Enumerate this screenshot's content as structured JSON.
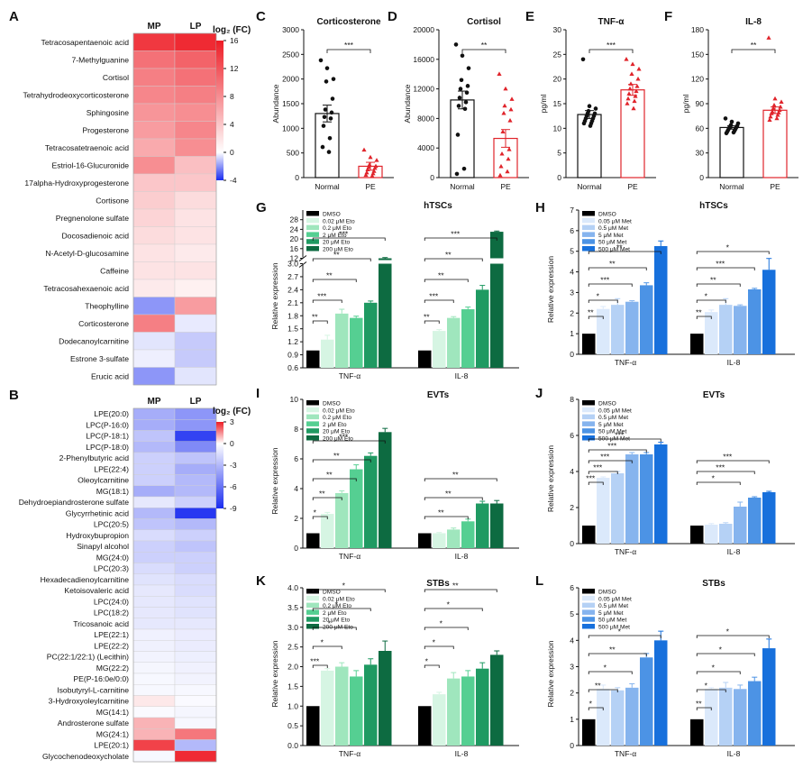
{
  "panel_labels": [
    "A",
    "B",
    "C",
    "D",
    "E",
    "F",
    "G",
    "H",
    "I",
    "J",
    "K",
    "L"
  ],
  "colors": {
    "black": "#000000",
    "eto": [
      "#000000",
      "#d6f5e3",
      "#9fe6bd",
      "#55cf92",
      "#1f9a62",
      "#0d6b41"
    ],
    "met": [
      "#000000",
      "#dbe9fb",
      "#b5d1f5",
      "#86b4ee",
      "#4c93e5",
      "#1770dc"
    ],
    "heat_pos": "#ee1c25",
    "heat_neg": "#1a2cf0",
    "normal": "#111111",
    "pe": "#e0242b"
  },
  "chart_data": [
    {
      "id": "A",
      "type": "heatmap",
      "columns": [
        "MP",
        "LP"
      ],
      "legend_title": "log₂ (FC)",
      "legend_ticks": [
        16,
        12,
        8,
        4,
        0,
        -4
      ],
      "range": [
        -4,
        16
      ],
      "rows": [
        "Tetracosapentaenoic acid",
        "7-Methylguanine",
        "Cortisol",
        "Tetrahydrodeoxycorticosterone",
        "Sphingosine",
        "Progesterone",
        "Tetracosatetraenoic acid",
        "Estriol-16-Glucuronide",
        "17alpha-Hydroxyprogesterone",
        "Cortisone",
        "Pregnenolone sulfate",
        "Docosadienoic acid",
        "N-Acetyl-D-glucosamine",
        "Caffeine",
        "Tetracosahexaenoic acid",
        "Theophylline",
        "Corticosterone",
        "Dodecanoylcarnitine",
        "Estrone 3-sulfate",
        "Erucic acid"
      ],
      "values": [
        [
          14,
          15
        ],
        [
          10,
          11
        ],
        [
          9,
          10
        ],
        [
          8.5,
          9
        ],
        [
          7.5,
          8
        ],
        [
          7,
          8.5
        ],
        [
          6,
          8
        ],
        [
          8,
          4.5
        ],
        [
          4,
          4
        ],
        [
          3.5,
          2.5
        ],
        [
          3,
          2
        ],
        [
          2.5,
          2
        ],
        [
          2,
          1.5
        ],
        [
          2,
          2
        ],
        [
          1.5,
          1
        ],
        [
          -2,
          7
        ],
        [
          9,
          -0.4
        ],
        [
          -0.5,
          -1
        ],
        [
          -0.3,
          -1
        ],
        [
          -2,
          -0.5
        ]
      ]
    },
    {
      "id": "B",
      "type": "heatmap",
      "columns": [
        "MP",
        "LP"
      ],
      "legend_title": "log₂ (FC)",
      "legend_ticks": [
        3,
        0,
        -3,
        -6,
        -9
      ],
      "range": [
        -9,
        3
      ],
      "rows": [
        "LPE(20:0)",
        "LPC(P-16:0)",
        "LPC(P-18:1)",
        "LPC(P-18:0)",
        "2-Phenylbutyric acid",
        "LPE(22:4)",
        "Oleoylcarnitine",
        "MG(18:1)",
        "Dehydroepiandrosterone sulfate",
        "Glycyrrhetinic acid",
        "LPC(20:5)",
        "Hydroxybupropion",
        "Sinapyl alcohol",
        "MG(24:0)",
        "LPC(20:3)",
        "Hexadecadienoylcarnitine",
        "Ketoisovaleric acid",
        "LPC(24:0)",
        "LPC(18:2)",
        "Tricosanoic acid",
        "LPE(22:1)",
        "LPE(22:2)",
        "PC(22:1/22:1) (Lecithin)",
        "MG(22:2)",
        "PE(P-16:0e/0:0)",
        "Isobutyryl-L-carnitine",
        "3-Hydroxyoleylcarnitine",
        "MG(14:1)",
        "Androsterone sulfate",
        "MG(24:1)",
        "LPE(20:1)",
        "Glycochenodeoxycholate"
      ],
      "values": [
        [
          -3.5,
          -4.5
        ],
        [
          -3.5,
          -4.5
        ],
        [
          -2.5,
          -8
        ],
        [
          -3,
          -5
        ],
        [
          -2,
          -2.5
        ],
        [
          -2,
          -3.5
        ],
        [
          -2,
          -3
        ],
        [
          -3.5,
          -3
        ],
        [
          -1,
          -2
        ],
        [
          -3,
          -8.5
        ],
        [
          -2.5,
          -3
        ],
        [
          -1.5,
          -2
        ],
        [
          -2,
          -2.5
        ],
        [
          -2,
          -2
        ],
        [
          -1.5,
          -2
        ],
        [
          -1.2,
          -1.5
        ],
        [
          -1,
          -1.5
        ],
        [
          -1,
          -1.2
        ],
        [
          -1,
          -1.2
        ],
        [
          -1,
          -1
        ],
        [
          -0.6,
          -0.8
        ],
        [
          -0.6,
          -0.8
        ],
        [
          -0.5,
          -0.7
        ],
        [
          -0.4,
          -0.6
        ],
        [
          -0.3,
          -0.5
        ],
        [
          -0.3,
          -0.3
        ],
        [
          0.3,
          -0.2
        ],
        [
          -0.2,
          -0.4
        ],
        [
          1,
          -0.3
        ],
        [
          1,
          1.8
        ],
        [
          2.5,
          -3
        ],
        [
          -0.3,
          2.8
        ]
      ]
    },
    {
      "id": "C",
      "type": "bar",
      "title": "Corticosterone",
      "ylabel": "Abundance",
      "categories": [
        "Normal",
        "PE"
      ],
      "ylim": [
        0,
        3000
      ],
      "yticks": [
        0,
        500,
        1000,
        1500,
        2000,
        2500,
        3000
      ],
      "means": [
        1300,
        230
      ],
      "sem": [
        170,
        80
      ],
      "significance": "***",
      "points": [
        [
          2380,
          2220,
          2000,
          1950,
          1600,
          1380,
          1320,
          1230,
          1200,
          1050,
          800,
          620,
          520
        ],
        [
          560,
          410,
          350,
          260,
          230,
          210,
          190,
          160,
          130,
          100,
          80,
          50,
          30
        ]
      ]
    },
    {
      "id": "D",
      "type": "bar",
      "title": "Cortisol",
      "ylabel": "Abundance",
      "categories": [
        "Normal",
        "PE"
      ],
      "ylim": [
        0,
        20000
      ],
      "yticks": [
        0,
        4000,
        8000,
        12000,
        16000,
        20000
      ],
      "means": [
        10500,
        5300
      ],
      "sem": [
        1200,
        1200
      ],
      "significance": "**",
      "points": [
        [
          18000,
          16500,
          14800,
          13200,
          12400,
          12000,
          11500,
          10800,
          10200,
          9700,
          9300,
          5800,
          1200,
          500
        ],
        [
          14000,
          12000,
          10600,
          9700,
          9200,
          8700,
          7700,
          6200,
          3800,
          3200,
          2500,
          1500,
          800,
          300
        ]
      ]
    },
    {
      "id": "E",
      "type": "bar",
      "title": "TNF-α",
      "ylabel": "pg/ml",
      "categories": [
        "Normal",
        "PE"
      ],
      "ylim": [
        0,
        30
      ],
      "yticks": [
        0,
        5,
        10,
        15,
        20,
        25,
        30
      ],
      "means": [
        12.8,
        17.8
      ],
      "sem": [
        0.8,
        1.1
      ],
      "significance": "***",
      "points": [
        [
          24,
          14.5,
          14,
          13.5,
          13,
          13,
          12.5,
          12.5,
          12,
          12,
          11.5,
          11.5,
          11,
          11,
          10.5
        ],
        [
          24,
          23,
          22,
          21,
          20,
          19,
          18.5,
          18,
          17.5,
          17,
          16.5,
          16,
          15.5,
          15,
          14
        ]
      ]
    },
    {
      "id": "F",
      "type": "bar",
      "title": "IL-8",
      "ylabel": "pg/ml",
      "categories": [
        "Normal",
        "PE"
      ],
      "ylim": [
        0,
        180
      ],
      "yticks": [
        0,
        30,
        60,
        90,
        120,
        150,
        180
      ],
      "means": [
        61,
        82
      ],
      "sem": [
        2,
        4
      ],
      "significance": "**",
      "points": [
        [
          72,
          68,
          66,
          64,
          63,
          62,
          61,
          60,
          59,
          58,
          57,
          56,
          55,
          54
        ],
        [
          170,
          96,
          92,
          88,
          86,
          84,
          82,
          80,
          79,
          78,
          76,
          74,
          72,
          70
        ]
      ]
    },
    {
      "id": "G",
      "type": "bar",
      "title": "hTSCs",
      "ylabel": "Relative expression",
      "categories": [
        "TNF-α",
        "IL-8"
      ],
      "legend": [
        "DMSO",
        "0.02 μM Eto",
        "0.2 μM Eto",
        "2 μM Eto",
        "20 μM Eto",
        "200 μM Eto"
      ],
      "broken_axis": {
        "lower": [
          0.6,
          3.0
        ],
        "upper": [
          12,
          32
        ]
      },
      "yticks_lower": [
        0.6,
        0.9,
        1.2,
        1.5,
        1.8,
        2.1,
        2.4,
        2.7,
        3.0
      ],
      "yticks_upper": [
        12,
        16,
        20,
        24,
        28
      ],
      "series_values": [
        [
          1.0,
          1.25,
          1.85,
          1.75,
          2.1,
          12
        ],
        [
          1.0,
          1.45,
          1.75,
          1.95,
          2.4,
          23
        ]
      ],
      "sem": [
        [
          0.02,
          0.1,
          0.1,
          0.04,
          0.04,
          0.3
        ],
        [
          0.02,
          0.03,
          0.03,
          0.05,
          0.1,
          0.3
        ]
      ],
      "brackets": [
        [
          "**",
          "***",
          "**",
          "**",
          "***"
        ],
        [
          "**",
          "***",
          "**",
          "**",
          "***"
        ]
      ],
      "bracket_targets": [
        [
          1,
          2,
          3,
          4,
          5
        ],
        [
          1,
          2,
          3,
          4,
          5
        ]
      ]
    },
    {
      "id": "H",
      "type": "bar",
      "title": "hTSCs",
      "ylabel": "Relative expression",
      "categories": [
        "TNF-α",
        "IL-8"
      ],
      "legend": [
        "DMSO",
        "0.05 μM Met",
        "0.5 μM Met",
        "5 μM Met",
        "50 μM Met",
        "500 μM Met"
      ],
      "ylim": [
        0,
        7
      ],
      "yticks": [
        0,
        1,
        2,
        3,
        4,
        5,
        6,
        7
      ],
      "series_values": [
        [
          1.0,
          2.2,
          2.4,
          2.55,
          3.35,
          5.25
        ],
        [
          1.0,
          2.05,
          2.4,
          2.35,
          3.15,
          4.1
        ]
      ],
      "sem": [
        [
          0.04,
          0.12,
          0.3,
          0.05,
          0.12,
          0.25
        ],
        [
          0.04,
          0.1,
          0.3,
          0.05,
          0.05,
          0.55
        ]
      ],
      "brackets": [
        [
          "**",
          "*",
          "***",
          "**",
          "**"
        ],
        [
          "**",
          "*",
          "**",
          "***",
          "*"
        ]
      ],
      "bracket_targets": [
        [
          1,
          2,
          3,
          4,
          5
        ],
        [
          1,
          2,
          3,
          4,
          5
        ]
      ]
    },
    {
      "id": "I",
      "type": "bar",
      "title": "EVTs",
      "ylabel": "Relative expression",
      "categories": [
        "TNF-α",
        "IL-8"
      ],
      "legend": [
        "DMSO",
        "0.02 μM Eto",
        "0.2 μM Eto",
        "2 μM Eto",
        "20 μM Eto",
        "200 μM Eto"
      ],
      "ylim": [
        0,
        10
      ],
      "yticks": [
        0,
        2,
        4,
        6,
        8,
        10
      ],
      "series_values": [
        [
          1.0,
          2.3,
          3.7,
          5.3,
          6.2,
          7.8
        ],
        [
          1.0,
          1.0,
          1.25,
          1.8,
          3.0,
          3.0
        ]
      ],
      "sem": [
        [
          0.04,
          0.1,
          0.15,
          0.3,
          0.2,
          0.25
        ],
        [
          0.04,
          0.05,
          0.1,
          0.15,
          0.15,
          0.2
        ]
      ],
      "brackets": [
        [
          "*",
          "**",
          "**",
          "**",
          "***"
        ],
        [
          "**",
          "**",
          "**"
        ]
      ],
      "bracket_targets": [
        [
          1,
          2,
          3,
          4,
          5
        ],
        [
          3,
          4,
          5
        ]
      ]
    },
    {
      "id": "J",
      "type": "bar",
      "title": "EVTs",
      "ylabel": "Relative expression",
      "categories": [
        "TNF-α",
        "IL-8"
      ],
      "legend": [
        "DMSO",
        "0.05 μM Met",
        "0.5 μM Met",
        "5 μM Met",
        "50 μM Met",
        "500 μM Met"
      ],
      "ylim": [
        0,
        8
      ],
      "yticks": [
        0,
        2,
        4,
        6,
        8
      ],
      "series_values": [
        [
          1.0,
          3.65,
          3.9,
          4.95,
          4.95,
          5.5
        ],
        [
          1.0,
          1.05,
          1.1,
          2.05,
          2.55,
          2.85
        ]
      ],
      "sem": [
        [
          0.06,
          0.05,
          0.1,
          0.1,
          0.1,
          0.12
        ],
        [
          0.06,
          0.06,
          0.06,
          0.25,
          0.05,
          0.05
        ]
      ],
      "brackets": [
        [
          "***",
          "***",
          "***",
          "***",
          "***"
        ],
        [
          "*",
          "***",
          "***"
        ]
      ],
      "bracket_targets": [
        [
          1,
          2,
          3,
          4,
          5
        ],
        [
          3,
          4,
          5
        ]
      ]
    },
    {
      "id": "K",
      "type": "bar",
      "title": "STBs",
      "ylabel": "Relative expression",
      "categories": [
        "TNF-α",
        "IL-8"
      ],
      "legend": [
        "DMSO",
        "0.02 μM Eto",
        "0.2 μM Eto",
        "2 μM Eto",
        "20 μM Eto",
        "200 μM Eto"
      ],
      "ylim": [
        0,
        4
      ],
      "yticks": [
        0,
        0.5,
        1.0,
        1.5,
        2.0,
        2.5,
        3.0,
        3.5,
        4.0
      ],
      "series_values": [
        [
          1.0,
          1.9,
          2.0,
          1.75,
          2.05,
          2.4
        ],
        [
          1.0,
          1.3,
          1.7,
          1.75,
          1.95,
          2.3
        ]
      ],
      "sem": [
        [
          0.02,
          0.05,
          0.1,
          0.15,
          0.15,
          0.25
        ],
        [
          0.02,
          0.05,
          0.15,
          0.15,
          0.15,
          0.1
        ]
      ],
      "brackets": [
        [
          "***",
          "*",
          "*",
          "*",
          "*"
        ],
        [
          "*",
          "*",
          "*",
          "*",
          "**"
        ]
      ],
      "bracket_targets": [
        [
          1,
          2,
          3,
          4,
          5
        ],
        [
          1,
          2,
          3,
          4,
          5
        ]
      ]
    },
    {
      "id": "L",
      "type": "bar",
      "title": "STBs",
      "ylabel": "Relative expression",
      "categories": [
        "TNF-α",
        "IL-8"
      ],
      "legend": [
        "DMSO",
        "0.05 μM Met",
        "0.5 μM Met",
        "5 μM Met",
        "50 μM Met",
        "500 μM Met"
      ],
      "ylim": [
        0,
        6
      ],
      "yticks": [
        0,
        1,
        2,
        3,
        4,
        5,
        6
      ],
      "series_values": [
        [
          1.0,
          2.15,
          2.1,
          2.2,
          3.35,
          4.0
        ],
        [
          1.0,
          2.15,
          2.2,
          2.15,
          2.45,
          3.7
        ]
      ],
      "sem": [
        [
          0.02,
          0.15,
          0.1,
          0.15,
          0.15,
          0.35
        ],
        [
          0.02,
          0.05,
          0.2,
          0.15,
          0.15,
          0.35
        ]
      ],
      "brackets": [
        [
          "*",
          "**",
          "*",
          "**",
          "*"
        ],
        [
          "**",
          "*",
          "*",
          "*",
          "*"
        ]
      ],
      "bracket_targets": [
        [
          1,
          2,
          3,
          4,
          5
        ],
        [
          1,
          2,
          3,
          4,
          5
        ]
      ]
    }
  ]
}
